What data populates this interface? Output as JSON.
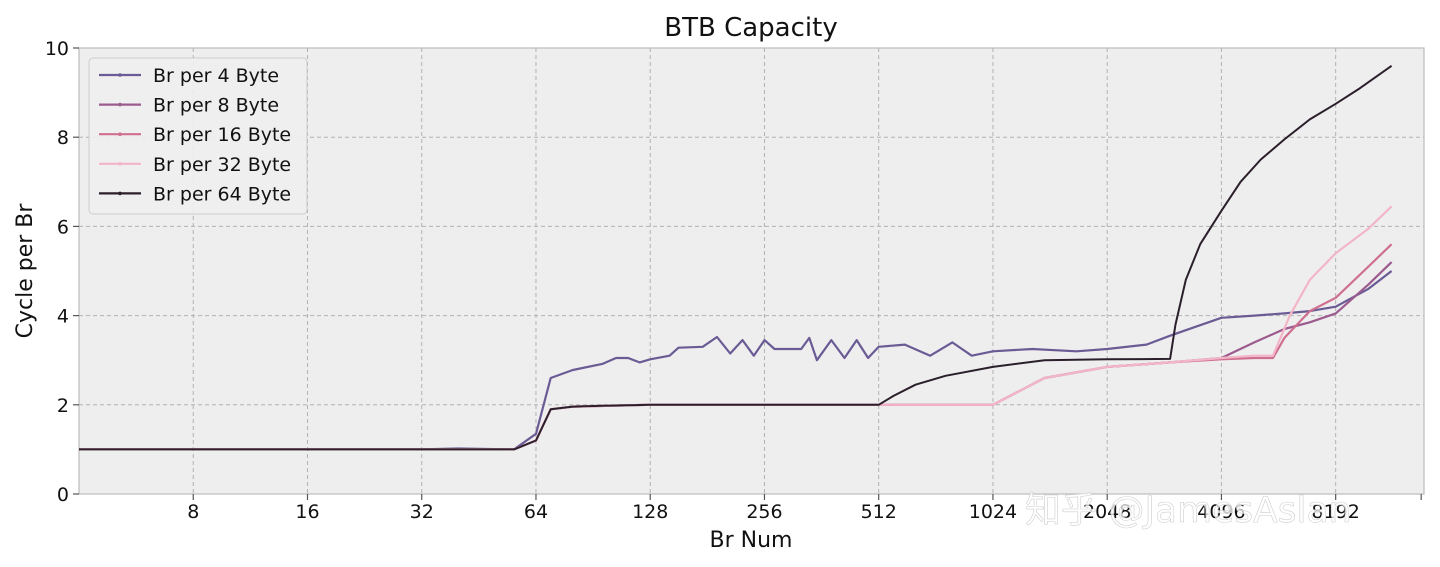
{
  "chart_data": {
    "type": "line",
    "title": "BTB Capacity",
    "xlabel": "Br Num",
    "ylabel": "Cycle per Br",
    "xscale": "log2",
    "xlim": [
      4,
      14000
    ],
    "ylim": [
      0,
      10
    ],
    "xticks": [
      8,
      16,
      32,
      64,
      128,
      256,
      512,
      1024,
      2048,
      4096,
      8192
    ],
    "xtick_labels": [
      "8",
      "16",
      "32",
      "64",
      "128",
      "256",
      "512",
      "1024",
      "2048",
      "4096",
      "8192"
    ],
    "yticks": [
      0,
      2,
      4,
      6,
      8,
      10
    ],
    "ytick_labels": [
      "0",
      "2",
      "4",
      "6",
      "8",
      "10"
    ],
    "grid": true,
    "legend_position": "top-left",
    "series": [
      {
        "name": "Br per 4 Byte",
        "color": "#6b5b95",
        "points": [
          [
            4,
            1
          ],
          [
            8,
            1
          ],
          [
            16,
            1
          ],
          [
            32,
            1
          ],
          [
            40,
            1.02
          ],
          [
            56,
            1
          ],
          [
            64,
            1.35
          ],
          [
            70,
            2.6
          ],
          [
            80,
            2.78
          ],
          [
            96,
            2.92
          ],
          [
            104,
            3.05
          ],
          [
            112,
            3.05
          ],
          [
            120,
            2.95
          ],
          [
            128,
            3.02
          ],
          [
            144,
            3.1
          ],
          [
            152,
            3.28
          ],
          [
            176,
            3.3
          ],
          [
            192,
            3.52
          ],
          [
            208,
            3.15
          ],
          [
            224,
            3.45
          ],
          [
            240,
            3.1
          ],
          [
            256,
            3.45
          ],
          [
            272,
            3.25
          ],
          [
            320,
            3.25
          ],
          [
            336,
            3.5
          ],
          [
            352,
            3.0
          ],
          [
            384,
            3.45
          ],
          [
            416,
            3.05
          ],
          [
            448,
            3.45
          ],
          [
            480,
            3.05
          ],
          [
            512,
            3.3
          ],
          [
            600,
            3.35
          ],
          [
            700,
            3.1
          ],
          [
            800,
            3.4
          ],
          [
            900,
            3.1
          ],
          [
            1024,
            3.2
          ],
          [
            1300,
            3.25
          ],
          [
            1700,
            3.2
          ],
          [
            2048,
            3.25
          ],
          [
            2600,
            3.35
          ],
          [
            3000,
            3.55
          ],
          [
            3500,
            3.75
          ],
          [
            4096,
            3.95
          ],
          [
            5000,
            4.0
          ],
          [
            6000,
            4.05
          ],
          [
            7000,
            4.1
          ],
          [
            8192,
            4.2
          ],
          [
            10000,
            4.6
          ],
          [
            11500,
            5.0
          ]
        ]
      },
      {
        "name": "Br per 8 Byte",
        "color": "#9c5b8f",
        "points": [
          [
            4,
            1
          ],
          [
            32,
            1
          ],
          [
            56,
            1
          ],
          [
            64,
            1.2
          ],
          [
            70,
            1.9
          ],
          [
            80,
            1.96
          ],
          [
            128,
            2.0
          ],
          [
            256,
            2.0
          ],
          [
            512,
            2.0
          ],
          [
            1024,
            2.0
          ],
          [
            1400,
            2.6
          ],
          [
            2048,
            2.85
          ],
          [
            3000,
            2.95
          ],
          [
            4096,
            3.05
          ],
          [
            5000,
            3.4
          ],
          [
            6000,
            3.7
          ],
          [
            7000,
            3.85
          ],
          [
            8192,
            4.05
          ],
          [
            10000,
            4.7
          ],
          [
            11500,
            5.2
          ]
        ]
      },
      {
        "name": "Br per 16 Byte",
        "color": "#cf6f8f",
        "points": [
          [
            4,
            1
          ],
          [
            32,
            1
          ],
          [
            56,
            1
          ],
          [
            64,
            1.2
          ],
          [
            70,
            1.9
          ],
          [
            80,
            1.96
          ],
          [
            128,
            2.0
          ],
          [
            256,
            2.0
          ],
          [
            512,
            2.0
          ],
          [
            1024,
            2.0
          ],
          [
            1400,
            2.6
          ],
          [
            2048,
            2.85
          ],
          [
            3000,
            2.95
          ],
          [
            4096,
            3.02
          ],
          [
            5000,
            3.05
          ],
          [
            5600,
            3.05
          ],
          [
            6000,
            3.5
          ],
          [
            7000,
            4.1
          ],
          [
            8192,
            4.4
          ],
          [
            10000,
            5.1
          ],
          [
            11500,
            5.6
          ]
        ]
      },
      {
        "name": "Br per 32 Byte",
        "color": "#f3b5c8",
        "points": [
          [
            4,
            1
          ],
          [
            32,
            1
          ],
          [
            56,
            1
          ],
          [
            64,
            1.2
          ],
          [
            70,
            1.9
          ],
          [
            80,
            1.96
          ],
          [
            128,
            2.0
          ],
          [
            256,
            2.0
          ],
          [
            512,
            2.0
          ],
          [
            1024,
            2.0
          ],
          [
            1400,
            2.6
          ],
          [
            2048,
            2.85
          ],
          [
            3000,
            2.95
          ],
          [
            4096,
            3.05
          ],
          [
            5000,
            3.1
          ],
          [
            5600,
            3.1
          ],
          [
            6200,
            4.0
          ],
          [
            7000,
            4.8
          ],
          [
            8192,
            5.4
          ],
          [
            10000,
            5.95
          ],
          [
            11500,
            6.45
          ]
        ]
      },
      {
        "name": "Br per 64 Byte",
        "color": "#2a1f2b",
        "points": [
          [
            4,
            1
          ],
          [
            32,
            1
          ],
          [
            56,
            1
          ],
          [
            64,
            1.2
          ],
          [
            70,
            1.9
          ],
          [
            80,
            1.96
          ],
          [
            96,
            1.98
          ],
          [
            128,
            2.0
          ],
          [
            256,
            2.0
          ],
          [
            512,
            2.0
          ],
          [
            560,
            2.2
          ],
          [
            640,
            2.45
          ],
          [
            768,
            2.65
          ],
          [
            1024,
            2.85
          ],
          [
            1400,
            3.0
          ],
          [
            2048,
            3.02
          ],
          [
            3000,
            3.03
          ],
          [
            3100,
            3.8
          ],
          [
            3300,
            4.8
          ],
          [
            3600,
            5.6
          ],
          [
            4096,
            6.35
          ],
          [
            4600,
            7.0
          ],
          [
            5200,
            7.5
          ],
          [
            6000,
            7.95
          ],
          [
            7000,
            8.4
          ],
          [
            8192,
            8.75
          ],
          [
            9500,
            9.1
          ],
          [
            11500,
            9.6
          ]
        ]
      }
    ]
  },
  "watermark": "知乎 @JamesAslan"
}
